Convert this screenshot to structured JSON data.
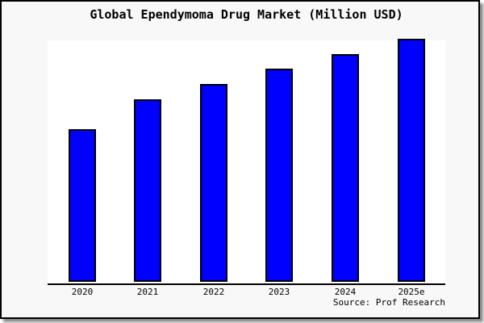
{
  "title": "Global Ependymoma Drug Market (Million USD)",
  "source": "Source: Prof Research",
  "colors": {
    "bar_fill": "#0000ff",
    "bar_border": "#000000",
    "frame_border": "#000000",
    "frame_background": "#f8f8f8",
    "plot_background": "#ffffff",
    "axis": "#000000",
    "text": "#000000"
  },
  "chart_data": {
    "type": "bar",
    "title": "Global Ependymoma Drug Market (Million USD)",
    "categories": [
      "2020",
      "2021",
      "2022",
      "2023",
      "2024",
      "2025e"
    ],
    "values": [
      62.8,
      75.1,
      81.4,
      87.7,
      93.7,
      100
    ],
    "xlabel": "",
    "ylabel": "",
    "ylim": [
      0,
      100
    ],
    "unit": "Million USD",
    "legend": "none",
    "grid": false,
    "y_axis_visible": false,
    "note": "No y-axis ticks shown in chart; values are relative estimates from bar heights, normalized so tallest bar (2025e) = 100."
  }
}
